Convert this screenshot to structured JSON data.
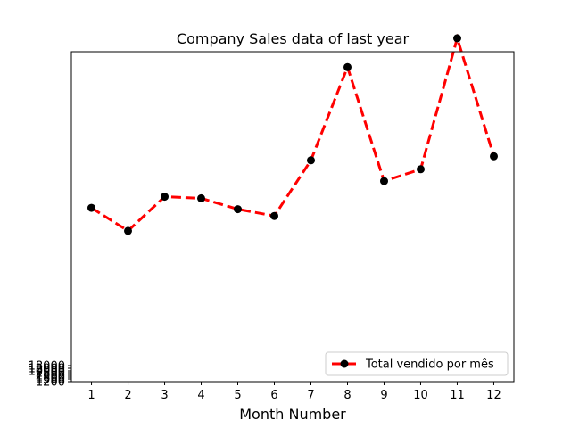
{
  "chart_data": {
    "type": "line",
    "title": "Company Sales data of last year",
    "xlabel": "Month Number",
    "ylabel": "",
    "x": [
      1,
      2,
      3,
      4,
      5,
      6,
      7,
      8,
      9,
      10,
      11,
      12
    ],
    "x_tick_labels": [
      "1",
      "2",
      "3",
      "4",
      "5",
      "6",
      "7",
      "8",
      "9",
      "10",
      "11",
      "12"
    ],
    "xlim": [
      0.45,
      12.55
    ],
    "ylim": [
      1000,
      400000
    ],
    "y_tick_labels": [
      "1200",
      "1500",
      "1800",
      "2000",
      "2500",
      "10000",
      "12000",
      "18000"
    ],
    "series": [
      {
        "name": "Total vendido por mês",
        "values": [
          211200,
          183300,
          224700,
          222700,
          209600,
          201400,
          268700,
          381300,
          243500,
          257900,
          416300,
          273500
        ],
        "line_color": "#ff0000",
        "line_style": "dashed",
        "marker_color": "#000000"
      }
    ],
    "legend_position": "lower right",
    "grid": false
  }
}
